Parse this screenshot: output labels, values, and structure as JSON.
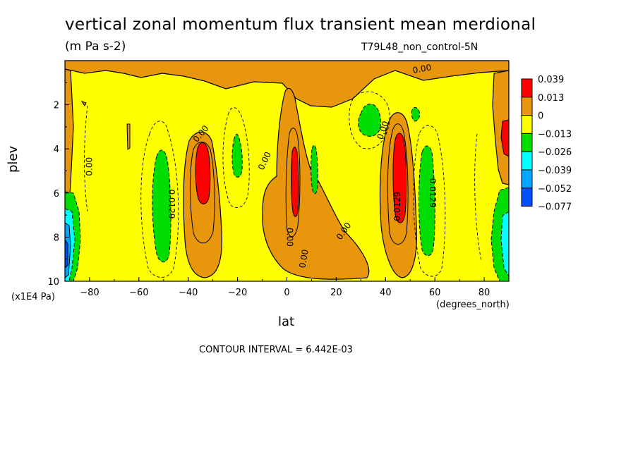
{
  "chart_data": {
    "type": "heatmap",
    "title": "vertical zonal momentum flux transient mean merdional",
    "units": "(m Pa s-2)",
    "run_label": "T79L48_non_control-5N",
    "xlabel": "lat",
    "xunits": "(degrees_north)",
    "ylabel": "plev",
    "yunits": "(x1E4 Pa)",
    "xlim": [
      -90,
      90
    ],
    "ylim": [
      10,
      0
    ],
    "x_ticks": [
      "-80",
      "-60",
      "-40",
      "-20",
      "0",
      "20",
      "40",
      "60",
      "80"
    ],
    "y_ticks": [
      "2",
      "4",
      "6",
      "8",
      "10"
    ],
    "contour_interval_text": "CONTOUR INTERVAL = 6.442E-03",
    "legend": {
      "levels": [
        "0.039",
        "0.013",
        "0",
        "−0.013",
        "−0.026",
        "−0.039",
        "−0.052",
        "−0.077"
      ],
      "colors": [
        "#ff0000",
        "#e8960c",
        "#ffff00",
        "#00dd00",
        "#00ffff",
        "#00a8ff",
        "#0050ff"
      ]
    },
    "contour_labels": [
      {
        "text": "0.00",
        "lat": 55,
        "plev": 0.5,
        "angle": -10
      },
      {
        "text": "0.00",
        "lat": -34,
        "plev": 3.4,
        "angle": -50
      },
      {
        "text": "0.00",
        "lat": -79,
        "plev": 4.8,
        "angle": -90
      },
      {
        "text": "0.0129",
        "lat": -48,
        "plev": 6.5,
        "angle": 90
      },
      {
        "text": "0.00",
        "lat": -8,
        "plev": 4.6,
        "angle": -65
      },
      {
        "text": "0.00",
        "lat": 0,
        "plev": 8.0,
        "angle": 90
      },
      {
        "text": "0.00",
        "lat": 8,
        "plev": 9.0,
        "angle": -80
      },
      {
        "text": "0.00",
        "lat": 24,
        "plev": 7.8,
        "angle": -55
      },
      {
        "text": "0.00",
        "lat": 40,
        "plev": 3.2,
        "angle": -70
      },
      {
        "text": "0.0129",
        "lat": 46,
        "plev": 6.6,
        "angle": -90
      },
      {
        "text": "0.0129",
        "lat": 58,
        "plev": 6.0,
        "angle": 90
      }
    ]
  }
}
